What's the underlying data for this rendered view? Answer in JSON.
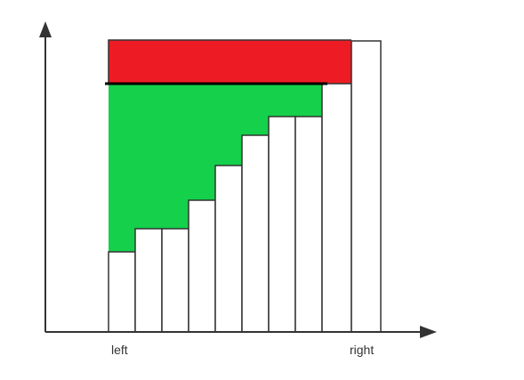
{
  "diagram": {
    "labels": {
      "left": "left",
      "right": "right"
    },
    "colors": {
      "red_region": "#ed1c24",
      "green_region": "#14d04a",
      "bars": "#ffffff",
      "outline": "#333333",
      "water_line": "#000000"
    }
  }
}
